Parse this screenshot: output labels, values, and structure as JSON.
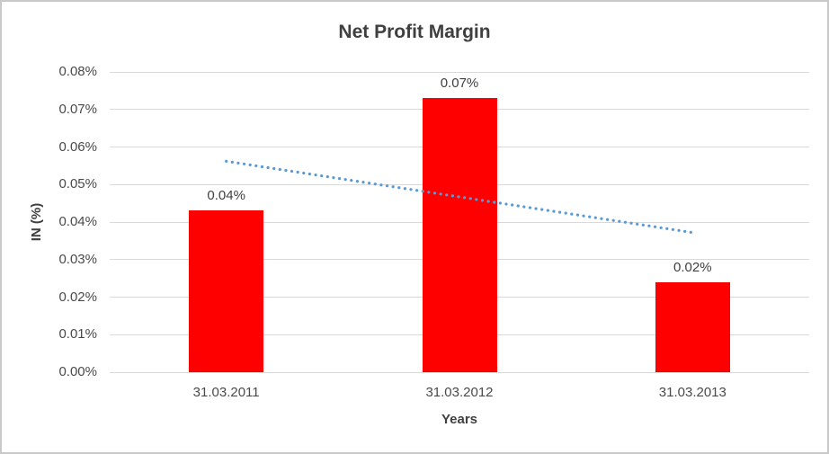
{
  "window": {
    "background": "#ffffff",
    "frame_border_color": "#c9c9c9"
  },
  "chart_data": {
    "type": "bar",
    "title": "Net Profit Margin",
    "xlabel": "Years",
    "ylabel": "IN (%)",
    "categories": [
      "31.03.2011",
      "31.03.2012",
      "31.03.2013"
    ],
    "series": [
      {
        "name": "Net Profit Margin",
        "color": "#ff0000",
        "values": [
          0.043,
          0.073,
          0.024
        ],
        "data_labels": [
          "0.04%",
          "0.07%",
          "0.02%"
        ]
      }
    ],
    "y_axis": {
      "min": 0,
      "max": 0.08,
      "tick_step": 0.01,
      "tick_labels": [
        "0.00%",
        "0.01%",
        "0.02%",
        "0.03%",
        "0.04%",
        "0.05%",
        "0.06%",
        "0.07%",
        "0.08%"
      ]
    },
    "grid": true,
    "legend": "none",
    "trendline": {
      "type": "linear",
      "style": "dotted",
      "color": "#5b9bd5",
      "start_value": 0.0562,
      "end_value": 0.0372
    },
    "colors": {
      "gridline": "#d9d9d9",
      "axis_text": "#4a4a4a",
      "title_text": "#3f3f3f",
      "data_label_text": "#404040"
    }
  }
}
